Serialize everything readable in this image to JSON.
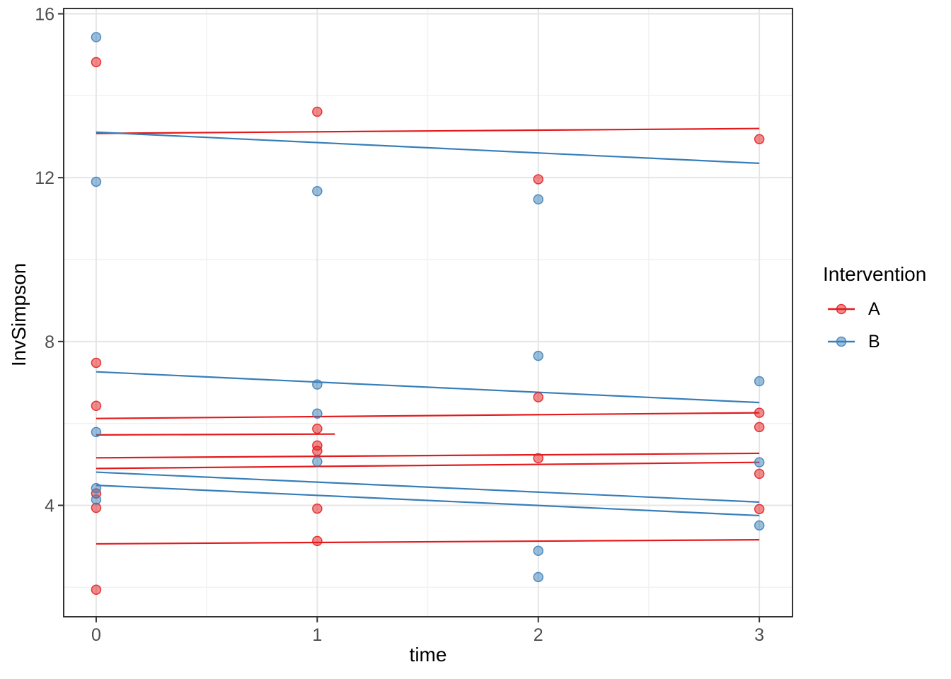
{
  "chart_data": {
    "type": "scatter",
    "title": "",
    "xlabel": "time",
    "ylabel": "InvSimpson",
    "x_tick_values": [
      0,
      1,
      2,
      3
    ],
    "x_tick_labels": [
      "0",
      "1",
      "2",
      "3"
    ],
    "y_tick_values": [
      4,
      8,
      12,
      16
    ],
    "y_tick_labels": [
      "4",
      "8",
      "12",
      "16"
    ],
    "x_minor_ticks": [
      0.5,
      1.5,
      2.5
    ],
    "y_minor_ticks": [
      2,
      6,
      10,
      14
    ],
    "xlim": [
      -0.147,
      3.15
    ],
    "ylim": [
      1.28,
      16.13
    ],
    "grid": true,
    "legend": {
      "title": "Intervention",
      "position": "right",
      "entries": [
        {
          "label": "A",
          "color": "#e41a1c"
        },
        {
          "label": "B",
          "color": "#377eb8"
        }
      ]
    },
    "series": [
      {
        "name": "A",
        "geom": "point",
        "color": "#e41a1c",
        "points": [
          [
            0,
            14.82
          ],
          [
            0,
            7.48
          ],
          [
            0,
            6.43
          ],
          [
            0,
            4.29
          ],
          [
            0,
            3.94
          ],
          [
            0,
            1.94
          ],
          [
            1,
            13.61
          ],
          [
            1,
            5.87
          ],
          [
            1,
            5.46
          ],
          [
            1,
            5.33
          ],
          [
            1,
            3.92
          ],
          [
            1,
            3.13
          ],
          [
            2,
            11.96
          ],
          [
            2,
            6.64
          ],
          [
            2,
            5.15
          ],
          [
            3,
            12.94
          ],
          [
            3,
            6.26
          ],
          [
            3,
            5.91
          ],
          [
            3,
            4.77
          ],
          [
            3,
            3.91
          ]
        ]
      },
      {
        "name": "B",
        "geom": "point",
        "color": "#377eb8",
        "points": [
          [
            0,
            15.43
          ],
          [
            0,
            11.9
          ],
          [
            0,
            5.79
          ],
          [
            0,
            4.42
          ],
          [
            0,
            4.14
          ],
          [
            1,
            11.67
          ],
          [
            1,
            6.95
          ],
          [
            1,
            6.24
          ],
          [
            1,
            5.07
          ],
          [
            2,
            11.47
          ],
          [
            2,
            7.65
          ],
          [
            2,
            2.89
          ],
          [
            2,
            2.25
          ],
          [
            3,
            7.03
          ],
          [
            3,
            5.05
          ],
          [
            3,
            3.51
          ]
        ]
      },
      {
        "name": "A-fit-lines",
        "geom": "line",
        "color": "#e41a1c",
        "segments": [
          [
            [
              0,
              13.08
            ],
            [
              3,
              13.2
            ]
          ],
          [
            [
              0,
              6.12
            ],
            [
              3,
              6.26
            ]
          ],
          [
            [
              0,
              5.72
            ],
            [
              1.08,
              5.74
            ]
          ],
          [
            [
              0,
              5.16
            ],
            [
              3,
              5.27
            ]
          ],
          [
            [
              0,
              4.9
            ],
            [
              3,
              5.05
            ]
          ],
          [
            [
              0,
              3.06
            ],
            [
              3,
              3.16
            ]
          ]
        ]
      },
      {
        "name": "B-fit-lines",
        "geom": "line",
        "color": "#377eb8",
        "segments": [
          [
            [
              0,
              13.11
            ],
            [
              3,
              12.35
            ]
          ],
          [
            [
              0,
              7.26
            ],
            [
              3,
              6.51
            ]
          ],
          [
            [
              0,
              4.81
            ],
            [
              3,
              4.08
            ]
          ],
          [
            [
              0,
              4.49
            ],
            [
              3,
              3.75
            ]
          ]
        ]
      }
    ],
    "style": {
      "point_radius": 6.5,
      "point_fill_opacity": 0.5,
      "point_stroke_opacity": 0.85,
      "line_width": 2.2,
      "grid_major_color": "#e5e5e5",
      "grid_minor_color": "#f1f1f1",
      "panel_border_color": "#333333",
      "tick_color": "#333333",
      "tick_label_color": "#4d4d4d",
      "axis_title_color": "#000000",
      "background": "#ffffff"
    }
  }
}
